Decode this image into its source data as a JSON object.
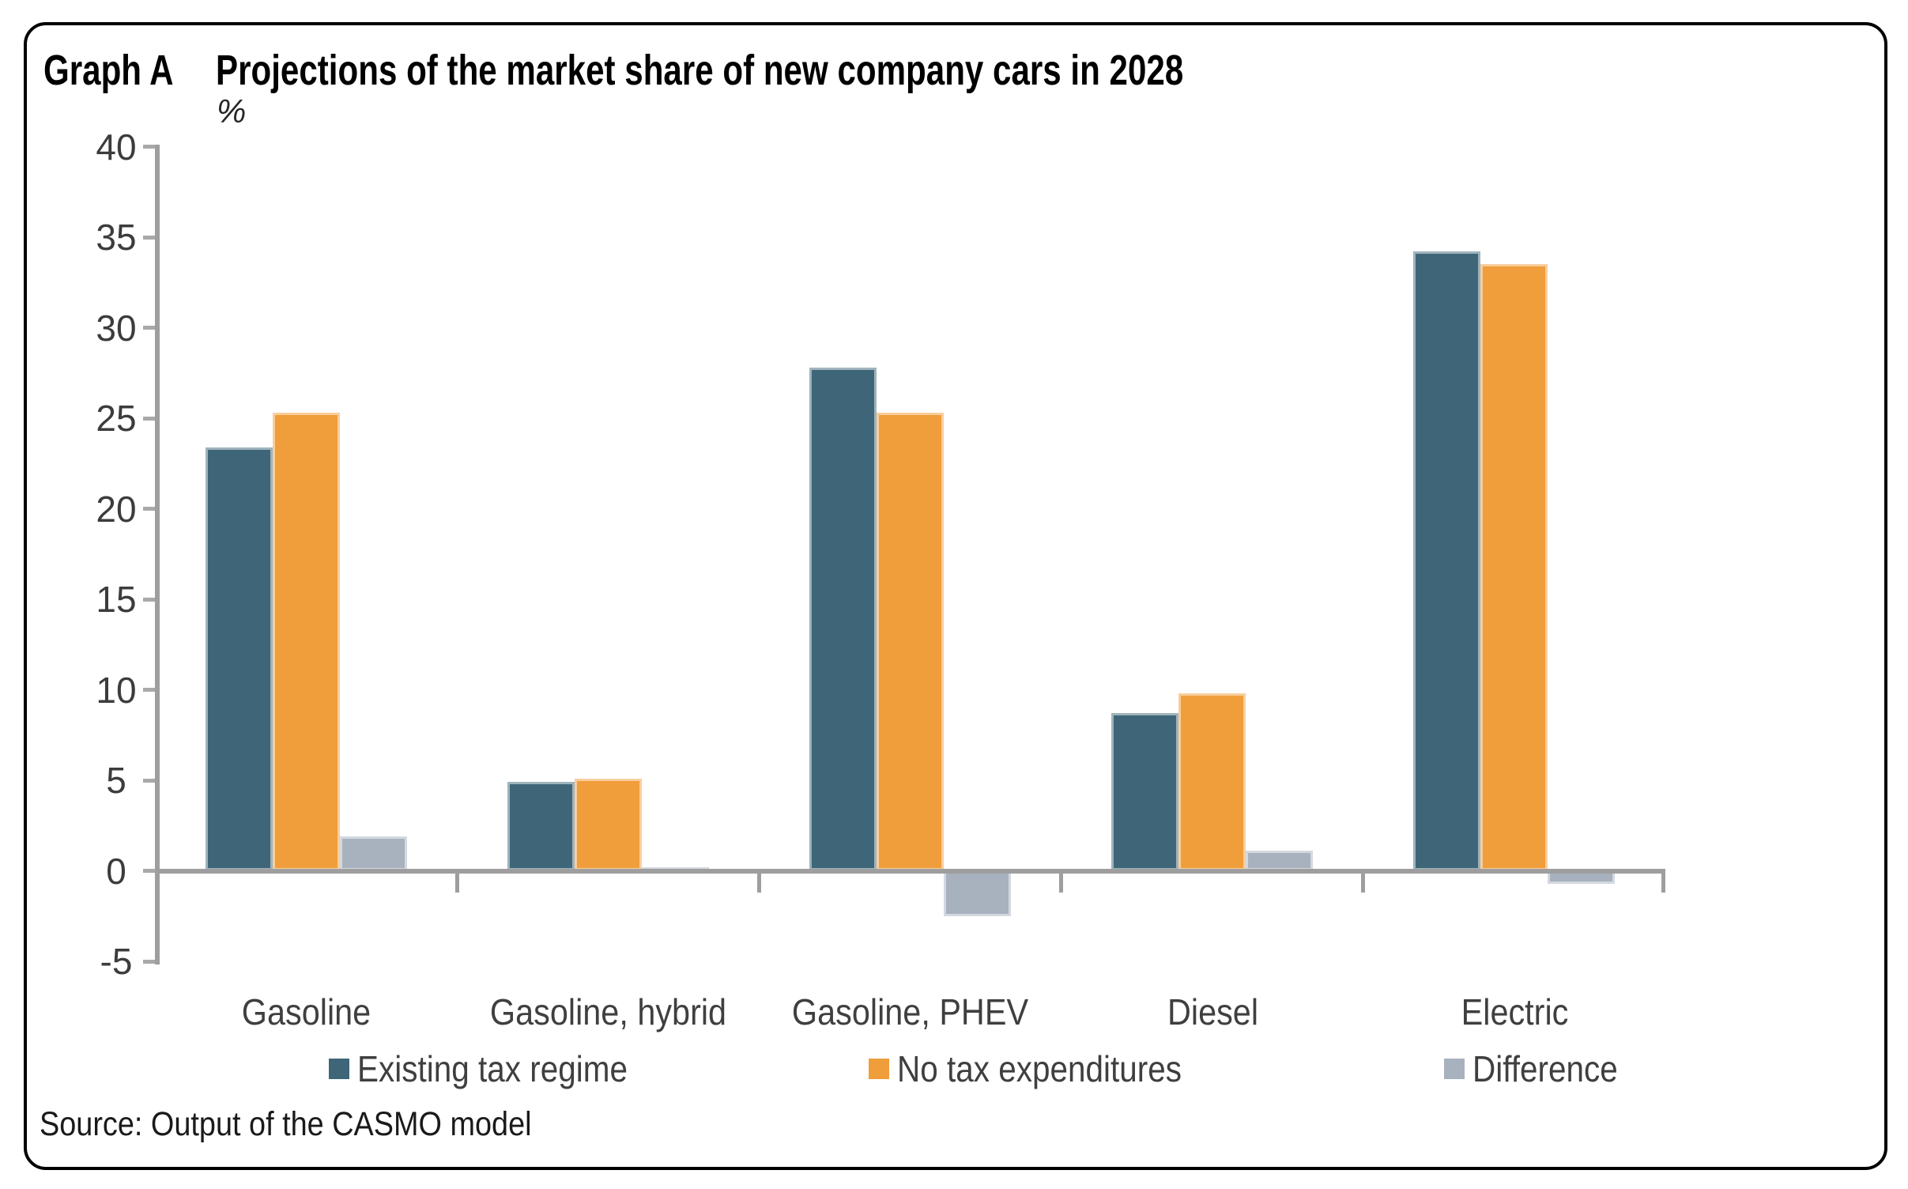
{
  "header": {
    "graph_label": "Graph A",
    "title": "Projections of the market share of new company cars in 2028",
    "unit_label": "%"
  },
  "chart_data": {
    "type": "bar",
    "title": "Projections of the market share of new company cars in 2028",
    "unit": "%",
    "categories": [
      "Gasoline",
      "Gasoline, hybrid",
      "Gasoline, PHEV",
      "Diesel",
      "Electric"
    ],
    "series": [
      {
        "name": "Existing tax regime",
        "color": "#3E6678",
        "values": [
          23.4,
          4.9,
          27.8,
          8.7,
          34.2
        ]
      },
      {
        "name": "No tax expenditures",
        "color": "#F09D3B",
        "values": [
          25.3,
          5.1,
          25.3,
          9.8,
          33.5
        ]
      },
      {
        "name": "Difference",
        "color": "#A8B1BE",
        "values": [
          1.9,
          0.2,
          -2.5,
          1.1,
          -0.7
        ]
      }
    ],
    "ylim": [
      -5,
      40
    ],
    "yticks": [
      40,
      35,
      30,
      25,
      20,
      15,
      10,
      5,
      0,
      -5
    ],
    "grid": false,
    "legend_position": "bottom",
    "axis_color": "#9E9E9E",
    "tick_color": "#A9A9A9",
    "tick_label_color": "#3C3C3C",
    "category_label_color": "#3F3F3F"
  },
  "source": {
    "text": "Source: Output of the CASMO model"
  },
  "frame": {
    "border_color": "#000000",
    "background": "#FFFFFF"
  }
}
